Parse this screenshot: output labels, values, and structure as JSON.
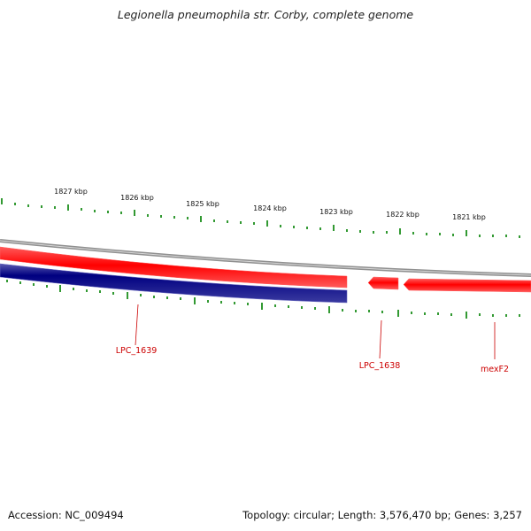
{
  "title": "Legionella pneumophila str. Corby, complete genome",
  "footer": {
    "accession": "Accession: NC_009494",
    "topology": "Topology: circular; Length: 3,576,470 bp; Genes: 3,257"
  },
  "scale_labels": [
    "1827 kbp",
    "1826 kbp",
    "1825 kbp",
    "1824 kbp",
    "1823 kbp",
    "1822 kbp",
    "1821 kbp"
  ],
  "genes": [
    {
      "name": "LPC_1639",
      "strand": "-"
    },
    {
      "name": "LPC_1638",
      "strand": "+"
    },
    {
      "name": "mexF2",
      "strand": "+"
    }
  ],
  "colors": {
    "forward_strand": "#ff0000",
    "reverse_strand": "#000080",
    "backbone": "#909090",
    "ticks": "#008000",
    "gene_label": "#cc0000"
  }
}
